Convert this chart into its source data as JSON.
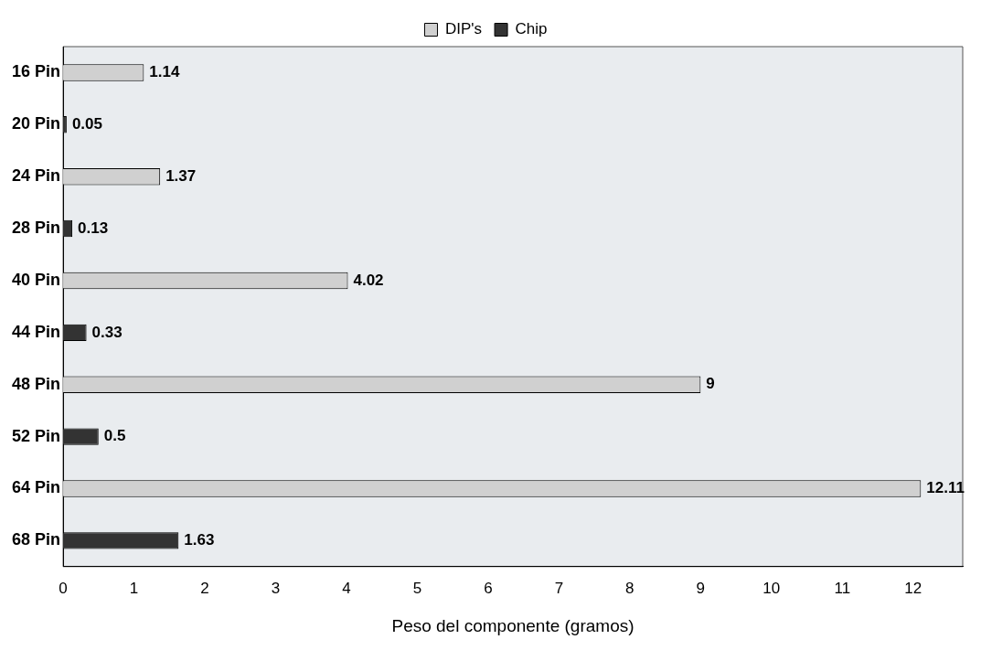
{
  "chart_data": {
    "type": "bar",
    "orientation": "horizontal",
    "xlabel": "Peso del componente (gramos)",
    "categories": [
      "16 Pin",
      "20 Pin",
      "24 Pin",
      "28 Pin",
      "40 Pin",
      "44 Pin",
      "48 Pin",
      "52 Pin",
      "64 Pin",
      "68 Pin"
    ],
    "series": [
      {
        "name": "DIP's",
        "color": "#d0d0d0",
        "values": [
          1.14,
          null,
          1.37,
          null,
          4.02,
          null,
          9,
          null,
          12.11,
          null
        ]
      },
      {
        "name": "Chip",
        "color": "#333333",
        "values": [
          null,
          0.05,
          null,
          0.13,
          null,
          0.33,
          null,
          0.5,
          null,
          1.63
        ]
      }
    ],
    "xlim": [
      0,
      12.7
    ],
    "xticks": [
      0,
      1,
      2,
      3,
      4,
      5,
      6,
      7,
      8,
      9,
      10,
      11,
      12
    ],
    "data_labels": true,
    "legend": "top",
    "grid": false
  }
}
